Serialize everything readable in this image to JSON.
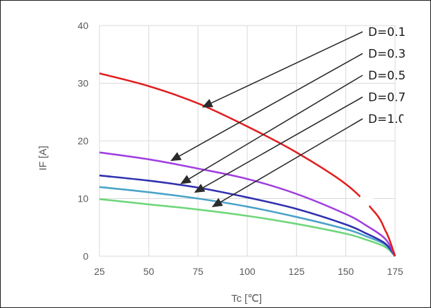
{
  "chart_data": {
    "type": "line",
    "xlabel": "Tc  [℃]",
    "ylabel": "IF  [A]",
    "xlim": [
      25,
      175
    ],
    "ylim": [
      0,
      40
    ],
    "x_ticks": [
      25,
      50,
      75,
      100,
      125,
      150,
      175
    ],
    "y_ticks": [
      0,
      10,
      20,
      30,
      40
    ],
    "grid": true,
    "series": [
      {
        "name": "D=0.1",
        "color": "#e02020",
        "points": [
          [
            25,
            31.7
          ],
          [
            50,
            29.5
          ],
          [
            75,
            26.5
          ],
          [
            100,
            22.5
          ],
          [
            125,
            18.0
          ],
          [
            150,
            12.5
          ],
          [
            165,
            7.5
          ],
          [
            170,
            4.5
          ],
          [
            172,
            3.0
          ],
          [
            175,
            0
          ]
        ]
      },
      {
        "name": "D=0.3",
        "color": "#a040e0",
        "points": [
          [
            25,
            18.0
          ],
          [
            50,
            16.8
          ],
          [
            75,
            15.2
          ],
          [
            100,
            13.4
          ],
          [
            125,
            10.8
          ],
          [
            150,
            7.3
          ],
          [
            160,
            5.4
          ],
          [
            170,
            3.0
          ],
          [
            175,
            0
          ]
        ]
      },
      {
        "name": "D=0.5",
        "color": "#3030b0",
        "points": [
          [
            25,
            14.0
          ],
          [
            50,
            13.1
          ],
          [
            75,
            11.9
          ],
          [
            100,
            10.2
          ],
          [
            125,
            8.2
          ],
          [
            150,
            5.5
          ],
          [
            160,
            4.0
          ],
          [
            170,
            2.2
          ],
          [
            175,
            0
          ]
        ]
      },
      {
        "name": "D=0.7",
        "color": "#4aa3c8",
        "points": [
          [
            25,
            12.0
          ],
          [
            50,
            11.1
          ],
          [
            75,
            10.0
          ],
          [
            100,
            8.6
          ],
          [
            125,
            6.8
          ],
          [
            150,
            4.7
          ],
          [
            160,
            3.5
          ],
          [
            170,
            2.0
          ],
          [
            175,
            0
          ]
        ]
      },
      {
        "name": "D=1.0",
        "color": "#6fd67a",
        "points": [
          [
            25,
            9.9
          ],
          [
            50,
            9.0
          ],
          [
            75,
            8.1
          ],
          [
            100,
            7.0
          ],
          [
            125,
            5.6
          ],
          [
            150,
            3.9
          ],
          [
            160,
            2.9
          ],
          [
            170,
            1.6
          ],
          [
            175,
            0
          ]
        ]
      }
    ],
    "annotations": [
      {
        "text": "D=0.1",
        "points_to": [
          77,
          25.8
        ]
      },
      {
        "text": "D=0.3",
        "points_to": [
          61,
          16.5
        ]
      },
      {
        "text": "D=0.5",
        "points_to": [
          66,
          12.5
        ]
      },
      {
        "text": "D=0.7",
        "points_to": [
          73,
          11.0
        ]
      },
      {
        "text": "D=1.0",
        "points_to": [
          82,
          8.5
        ]
      }
    ]
  }
}
